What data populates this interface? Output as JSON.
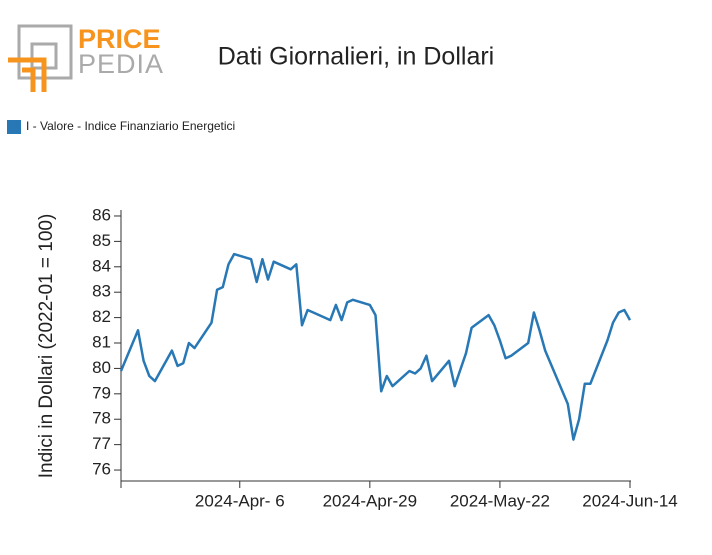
{
  "logo": {
    "line1": "PRICE",
    "line2": "PEDIA"
  },
  "chart_data": {
    "type": "line",
    "title": "Dati Giornalieri, in Dollari",
    "ylabel": "Indici in Dollari (2022-01 = 100)",
    "x": [
      "2024-03-16",
      "2024-03-19",
      "2024-03-20",
      "2024-03-21",
      "2024-03-22",
      "2024-03-25",
      "2024-03-26",
      "2024-03-27",
      "2024-03-28",
      "2024-03-29",
      "2024-04-01",
      "2024-04-02",
      "2024-04-03",
      "2024-04-04",
      "2024-04-05",
      "2024-04-08",
      "2024-04-09",
      "2024-04-10",
      "2024-04-11",
      "2024-04-12",
      "2024-04-15",
      "2024-04-16",
      "2024-04-17",
      "2024-04-18",
      "2024-04-19",
      "2024-04-22",
      "2024-04-23",
      "2024-04-24",
      "2024-04-25",
      "2024-04-26",
      "2024-04-29",
      "2024-04-30",
      "2024-05-01",
      "2024-05-02",
      "2024-05-03",
      "2024-05-06",
      "2024-05-07",
      "2024-05-08",
      "2024-05-09",
      "2024-05-10",
      "2024-05-13",
      "2024-05-14",
      "2024-05-16",
      "2024-05-17",
      "2024-05-20",
      "2024-05-21",
      "2024-05-22",
      "2024-05-23",
      "2024-05-24",
      "2024-05-27",
      "2024-05-28",
      "2024-05-29",
      "2024-05-30",
      "2024-06-03",
      "2024-06-04",
      "2024-06-05",
      "2024-06-06",
      "2024-06-07",
      "2024-06-10",
      "2024-06-11",
      "2024-06-12",
      "2024-06-13",
      "2024-06-14"
    ],
    "series": [
      {
        "name": "I - Valore - Indice Finanziario Energetici",
        "color": "#2878b5",
        "values": [
          79.9,
          81.5,
          80.3,
          79.7,
          79.5,
          80.7,
          80.1,
          80.2,
          81.0,
          80.8,
          81.8,
          83.1,
          83.2,
          84.1,
          84.5,
          84.3,
          83.4,
          84.3,
          83.5,
          84.2,
          83.9,
          84.1,
          81.7,
          82.3,
          82.2,
          81.9,
          82.5,
          81.9,
          82.6,
          82.7,
          82.5,
          82.1,
          79.1,
          79.7,
          79.3,
          79.9,
          79.8,
          80.0,
          80.5,
          79.5,
          80.3,
          79.3,
          80.6,
          81.6,
          82.1,
          81.7,
          81.1,
          80.4,
          80.5,
          81.0,
          82.2,
          81.5,
          80.7,
          78.6,
          77.2,
          78.0,
          79.4,
          79.4,
          81.1,
          81.8,
          82.2,
          82.3,
          81.9
        ]
      }
    ],
    "xlim": [
      "2024-03-16",
      "2024-06-14"
    ],
    "xticks": [
      {
        "value": "2024-04-06",
        "label": "2024-Apr- 6"
      },
      {
        "value": "2024-04-29",
        "label": "2024-Apr-29"
      },
      {
        "value": "2024-05-22",
        "label": "2024-May-22"
      },
      {
        "value": "2024-06-14",
        "label": "2024-Jun-14"
      }
    ],
    "ylim": [
      75.6,
      86.2
    ],
    "yticks": [
      76,
      77,
      78,
      79,
      80,
      81,
      82,
      83,
      84,
      85,
      86
    ],
    "grid": false,
    "legend": "top-left"
  }
}
